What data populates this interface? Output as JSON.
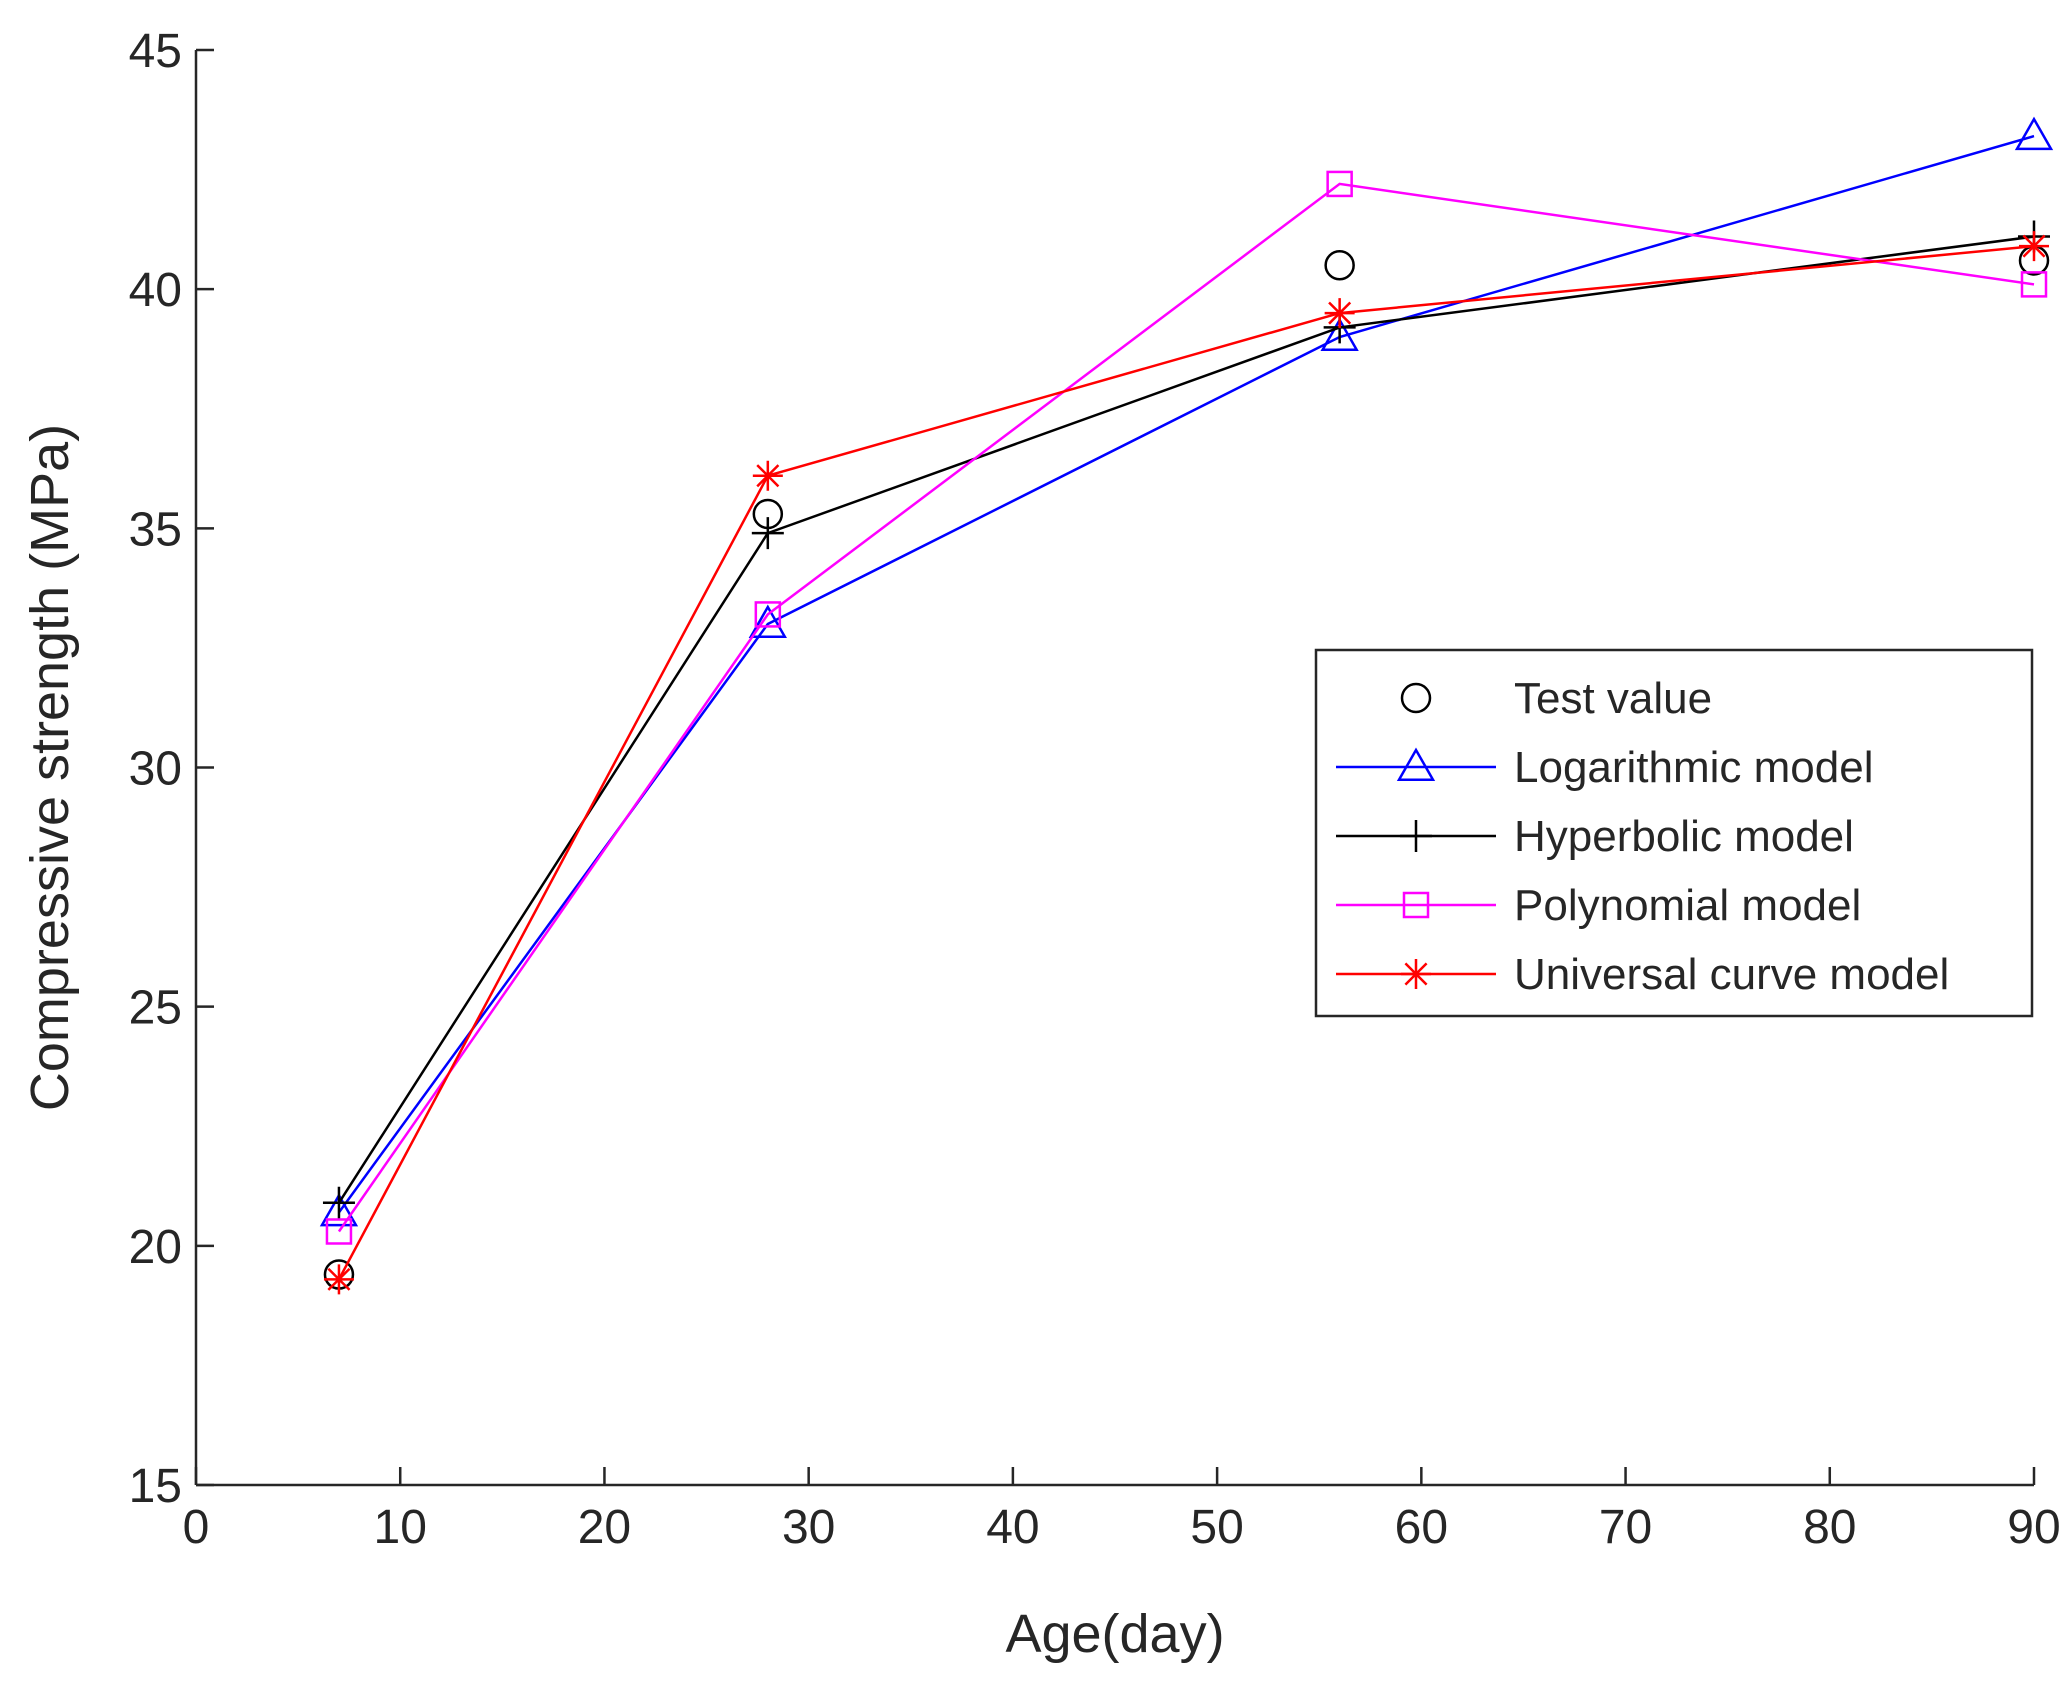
{
  "chart_data": {
    "type": "line",
    "title": "",
    "xlabel": "Age(day)",
    "ylabel": "Compressive strength (MPa)",
    "xlim": [
      0,
      90
    ],
    "ylim": [
      15,
      45
    ],
    "xticks": [
      0,
      10,
      20,
      30,
      40,
      50,
      60,
      70,
      80,
      90
    ],
    "yticks": [
      15,
      20,
      25,
      30,
      35,
      40,
      45
    ],
    "grid": false,
    "legend_position": "right",
    "series": [
      {
        "name": "Test value",
        "marker": "circle",
        "line": false,
        "color": "#000000",
        "x": [
          7,
          28,
          56,
          90
        ],
        "y": [
          19.4,
          35.3,
          40.5,
          40.6
        ]
      },
      {
        "name": "Logarithmic model",
        "marker": "triangle",
        "line": true,
        "color": "#0000ff",
        "x": [
          7,
          28,
          56,
          90
        ],
        "y": [
          20.7,
          33.0,
          39.0,
          43.2
        ]
      },
      {
        "name": "Hyperbolic model",
        "marker": "plus",
        "line": true,
        "color": "#000000",
        "x": [
          7,
          28,
          56,
          90
        ],
        "y": [
          20.9,
          34.9,
          39.2,
          41.1
        ]
      },
      {
        "name": "Polynomial model",
        "marker": "square",
        "line": true,
        "color": "#ff00ff",
        "x": [
          7,
          28,
          56,
          90
        ],
        "y": [
          20.3,
          33.2,
          42.2,
          40.1
        ]
      },
      {
        "name": "Universal curve model",
        "marker": "asterisk",
        "line": true,
        "color": "#ff0000",
        "x": [
          7,
          28,
          56,
          90
        ],
        "y": [
          19.3,
          36.1,
          39.5,
          40.9
        ]
      }
    ]
  }
}
